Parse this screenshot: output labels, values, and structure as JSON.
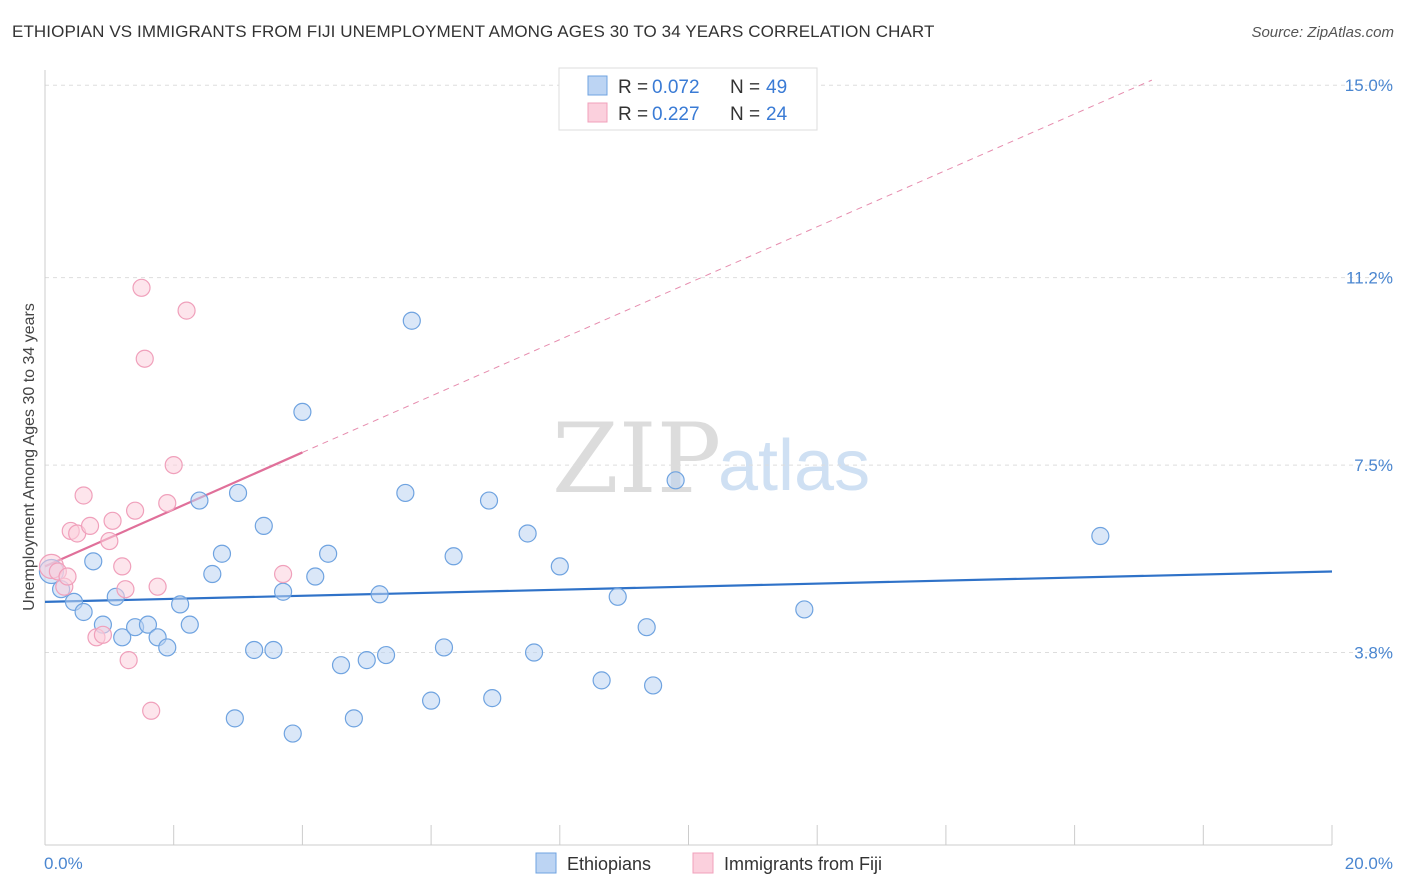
{
  "title": "ETHIOPIAN VS IMMIGRANTS FROM FIJI UNEMPLOYMENT AMONG AGES 30 TO 34 YEARS CORRELATION CHART",
  "source": "Source: ZipAtlas.com",
  "watermark": {
    "zip": "ZIP",
    "atlas": "atlas"
  },
  "legend_box": {
    "rows": [
      {
        "r_label": "R =",
        "r_value": "0.072",
        "n_label": "N =",
        "n_value": "49"
      },
      {
        "r_label": "R =",
        "r_value": "0.227",
        "n_label": "N =",
        "n_value": "24"
      }
    ]
  },
  "bottom_legend": [
    "Ethiopians",
    "Immigrants from Fiji"
  ],
  "chart_data": {
    "type": "scatter",
    "title": "ETHIOPIAN VS IMMIGRANTS FROM FIJI UNEMPLOYMENT AMONG AGES 30 TO 34 YEARS CORRELATION CHART",
    "xlabel": "",
    "ylabel": "Unemployment Among Ages 30 to 34 years",
    "xlim": [
      0,
      20
    ],
    "ylim": [
      0,
      15.3
    ],
    "x_tick_labels": [
      "0.0%",
      "20.0%"
    ],
    "y_ticks": [
      3.8,
      7.5,
      11.2,
      15.0
    ],
    "y_tick_labels": [
      "3.8%",
      "7.5%",
      "11.2%",
      "15.0%"
    ],
    "grid": true,
    "colors": {
      "ethiopians": "#6fa3e0",
      "fiji": "#f0a0bb",
      "eth_line": "#2f72c8",
      "fiji_line": "#e0709a"
    },
    "series": [
      {
        "name": "Ethiopians",
        "r": 0.072,
        "n": 49,
        "trend": {
          "x": [
            0,
            20
          ],
          "y": [
            4.8,
            5.4
          ]
        },
        "points": [
          {
            "x": 0.1,
            "y": 5.4
          },
          {
            "x": 0.25,
            "y": 5.05
          },
          {
            "x": 0.45,
            "y": 4.8
          },
          {
            "x": 0.6,
            "y": 4.6
          },
          {
            "x": 0.75,
            "y": 5.6
          },
          {
            "x": 0.9,
            "y": 4.35
          },
          {
            "x": 1.1,
            "y": 4.9
          },
          {
            "x": 1.2,
            "y": 4.1
          },
          {
            "x": 1.4,
            "y": 4.3
          },
          {
            "x": 1.6,
            "y": 4.35
          },
          {
            "x": 1.75,
            "y": 4.1
          },
          {
            "x": 1.9,
            "y": 3.9
          },
          {
            "x": 2.1,
            "y": 4.75
          },
          {
            "x": 2.25,
            "y": 4.35
          },
          {
            "x": 2.4,
            "y": 6.8
          },
          {
            "x": 2.6,
            "y": 5.35
          },
          {
            "x": 2.75,
            "y": 5.75
          },
          {
            "x": 2.95,
            "y": 2.5
          },
          {
            "x": 3.0,
            "y": 6.95
          },
          {
            "x": 3.25,
            "y": 3.85
          },
          {
            "x": 3.4,
            "y": 6.3
          },
          {
            "x": 3.55,
            "y": 3.85
          },
          {
            "x": 3.7,
            "y": 5.0
          },
          {
            "x": 3.85,
            "y": 2.2
          },
          {
            "x": 4.0,
            "y": 8.55
          },
          {
            "x": 4.2,
            "y": 5.3
          },
          {
            "x": 4.4,
            "y": 5.75
          },
          {
            "x": 4.6,
            "y": 3.55
          },
          {
            "x": 4.8,
            "y": 2.5
          },
          {
            "x": 5.0,
            "y": 3.65
          },
          {
            "x": 5.2,
            "y": 4.95
          },
          {
            "x": 5.3,
            "y": 3.75
          },
          {
            "x": 5.6,
            "y": 6.95
          },
          {
            "x": 5.7,
            "y": 10.35
          },
          {
            "x": 6.0,
            "y": 2.85
          },
          {
            "x": 6.2,
            "y": 3.9
          },
          {
            "x": 6.35,
            "y": 5.7
          },
          {
            "x": 6.9,
            "y": 6.8
          },
          {
            "x": 6.95,
            "y": 2.9
          },
          {
            "x": 7.5,
            "y": 6.15
          },
          {
            "x": 7.6,
            "y": 3.8
          },
          {
            "x": 8.0,
            "y": 5.5
          },
          {
            "x": 8.65,
            "y": 3.25
          },
          {
            "x": 8.9,
            "y": 4.9
          },
          {
            "x": 9.35,
            "y": 4.3
          },
          {
            "x": 9.45,
            "y": 3.15
          },
          {
            "x": 9.8,
            "y": 7.2
          },
          {
            "x": 11.8,
            "y": 4.65
          },
          {
            "x": 16.4,
            "y": 6.1
          }
        ]
      },
      {
        "name": "Immigrants from Fiji",
        "r": 0.227,
        "n": 24,
        "trend": {
          "x": [
            0,
            4
          ],
          "y": [
            5.5,
            7.75
          ]
        },
        "trend_dashed": {
          "x": [
            4,
            17.2
          ],
          "y": [
            7.75,
            15.1
          ]
        },
        "points": [
          {
            "x": 0.1,
            "y": 5.5
          },
          {
            "x": 0.2,
            "y": 5.4
          },
          {
            "x": 0.3,
            "y": 5.1
          },
          {
            "x": 0.35,
            "y": 5.3
          },
          {
            "x": 0.4,
            "y": 6.2
          },
          {
            "x": 0.5,
            "y": 6.15
          },
          {
            "x": 0.6,
            "y": 6.9
          },
          {
            "x": 0.7,
            "y": 6.3
          },
          {
            "x": 0.8,
            "y": 4.1
          },
          {
            "x": 0.9,
            "y": 4.15
          },
          {
            "x": 1.0,
            "y": 6.0
          },
          {
            "x": 1.05,
            "y": 6.4
          },
          {
            "x": 1.2,
            "y": 5.5
          },
          {
            "x": 1.25,
            "y": 5.05
          },
          {
            "x": 1.3,
            "y": 3.65
          },
          {
            "x": 1.4,
            "y": 6.6
          },
          {
            "x": 1.5,
            "y": 11.0
          },
          {
            "x": 1.55,
            "y": 9.6
          },
          {
            "x": 1.65,
            "y": 2.65
          },
          {
            "x": 1.75,
            "y": 5.1
          },
          {
            "x": 1.9,
            "y": 6.75
          },
          {
            "x": 2.0,
            "y": 7.5
          },
          {
            "x": 2.2,
            "y": 10.55
          },
          {
            "x": 3.7,
            "y": 5.35
          }
        ]
      }
    ]
  }
}
